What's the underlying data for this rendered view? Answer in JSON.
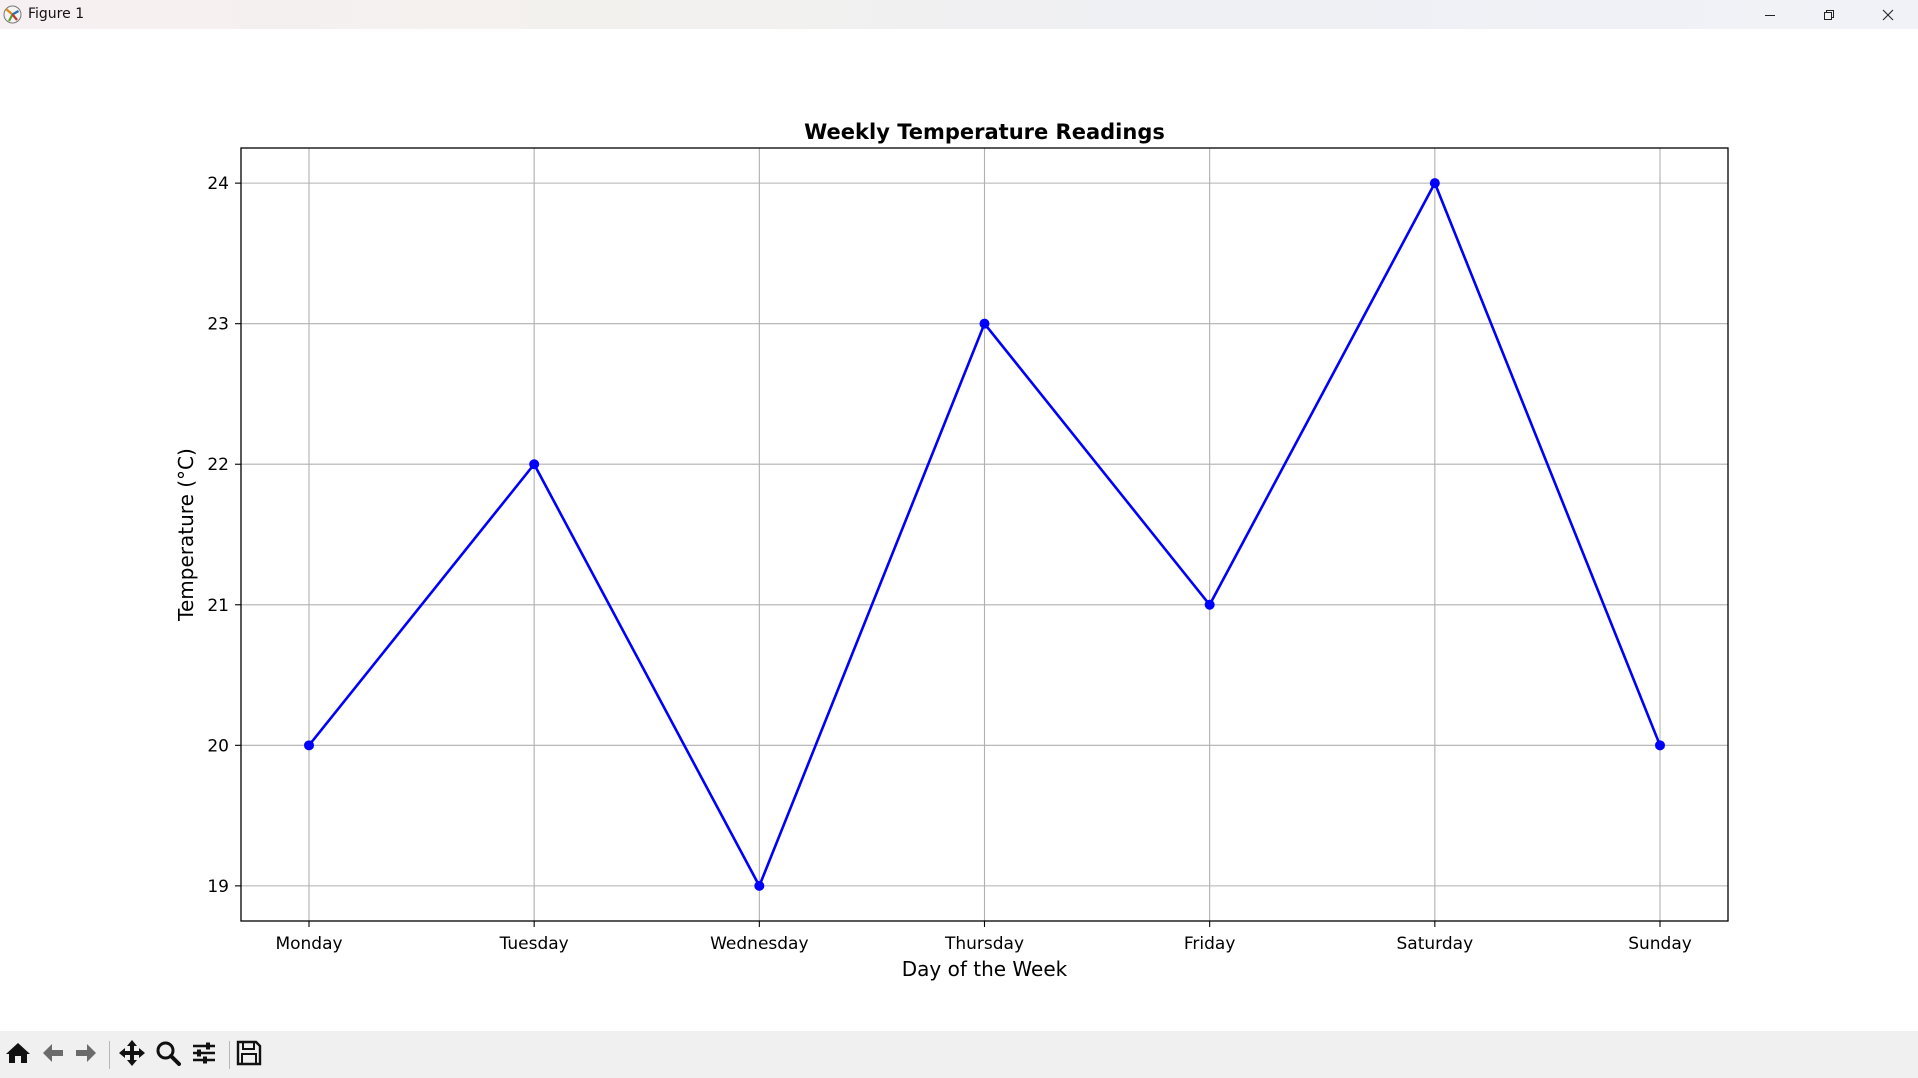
{
  "window": {
    "title": "Figure 1",
    "controls": [
      "minimize-icon",
      "restore-icon",
      "close-icon"
    ]
  },
  "toolbar": {
    "tools": [
      "home-icon",
      "back-arrow-icon",
      "forward-arrow-icon",
      "pan-icon",
      "zoom-icon",
      "configure-subplots-icon",
      "save-icon"
    ]
  },
  "chart_data": {
    "type": "line",
    "title": "Weekly Temperature Readings",
    "xlabel": "Day of the Week",
    "ylabel": "Temperature (°C)",
    "categories": [
      "Monday",
      "Tuesday",
      "Wednesday",
      "Thursday",
      "Friday",
      "Saturday",
      "Sunday"
    ],
    "series": [
      {
        "values": [
          20,
          22,
          19,
          23,
          21,
          24,
          20
        ],
        "color": "#0000ff",
        "marker": "circle"
      }
    ],
    "yticks": [
      19,
      20,
      21,
      22,
      23,
      24
    ],
    "ylim": [
      18.75,
      24.25
    ],
    "grid": true
  }
}
